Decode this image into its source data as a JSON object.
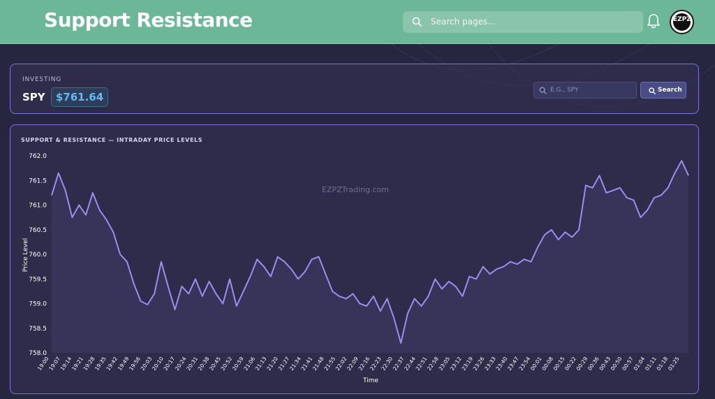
{
  "header": {
    "title": "Support Resistance",
    "search_placeholder": "Search pages...",
    "avatar_text": "EZPZ"
  },
  "quote": {
    "label": "INVESTING",
    "ticker": "SPY",
    "price": "$761.64",
    "input_placeholder": "E.G., SPY",
    "search_label": "Search"
  },
  "chart": {
    "watermark": "EZPZTrading.com"
  },
  "colors": {
    "header_bg": "#6cb797",
    "page_bg": "#272640",
    "accent_line": "#9a8ff0",
    "price_text": "#64b9f0"
  },
  "chart_data": {
    "type": "line",
    "title": "SUPPORT & RESISTANCE — INTRADAY PRICE LEVELS",
    "xlabel": "Time",
    "ylabel": "Price Level",
    "ylim": [
      758.0,
      762.0
    ],
    "yticks": [
      "762.0",
      "761.5",
      "761.0",
      "760.5",
      "760.0",
      "759.5",
      "759.0",
      "758.5",
      "758.0"
    ],
    "x_tick_labels": [
      "19:00",
      "19:07",
      "19:14",
      "19:21",
      "19:28",
      "19:35",
      "19:42",
      "19:49",
      "19:56",
      "20:03",
      "20:10",
      "20:17",
      "20:24",
      "20:31",
      "20:38",
      "20:45",
      "20:52",
      "20:59",
      "21:06",
      "21:13",
      "21:20",
      "21:27",
      "21:34",
      "21:41",
      "21:48",
      "21:55",
      "22:02",
      "22:09",
      "22:16",
      "22:23",
      "22:30",
      "22:37",
      "22:44",
      "22:51",
      "22:58",
      "23:05",
      "23:12",
      "23:19",
      "23:26",
      "23:33",
      "23:40",
      "23:47",
      "23:54",
      "00:01",
      "00:08",
      "00:15",
      "00:22",
      "00:29",
      "00:36",
      "00:43",
      "00:50",
      "00:57",
      "01:04",
      "01:11",
      "01:18",
      "01:25"
    ],
    "grid": false,
    "series": [
      {
        "values": [
          761.2,
          761.65,
          761.3,
          760.75,
          761.0,
          760.8,
          761.25,
          760.9,
          760.7,
          760.45,
          760.0,
          759.85,
          759.4,
          759.05,
          758.98,
          759.2,
          759.85,
          759.35,
          758.88,
          759.35,
          759.2,
          759.5,
          759.15,
          759.45,
          759.2,
          759.0,
          759.5,
          758.95,
          759.25,
          759.55,
          759.9,
          759.75,
          759.55,
          759.95,
          759.85,
          759.7,
          759.5,
          759.65,
          759.9,
          759.95,
          759.6,
          759.25,
          759.15,
          759.1,
          759.2,
          759.0,
          758.95,
          759.15,
          758.85,
          759.1,
          758.7,
          758.2,
          758.8,
          759.1,
          758.95,
          759.15,
          759.5,
          759.3,
          759.45,
          759.35,
          759.15,
          759.55,
          759.5,
          759.75,
          759.6,
          759.7,
          759.75,
          759.85,
          759.8,
          759.9,
          759.85,
          760.15,
          760.4,
          760.5,
          760.3,
          760.45,
          760.35,
          760.5,
          761.4,
          761.35,
          761.6,
          761.25,
          761.3,
          761.35,
          761.15,
          761.1,
          760.75,
          760.9,
          761.15,
          761.2,
          761.35,
          761.65,
          761.9,
          761.6
        ]
      }
    ]
  }
}
